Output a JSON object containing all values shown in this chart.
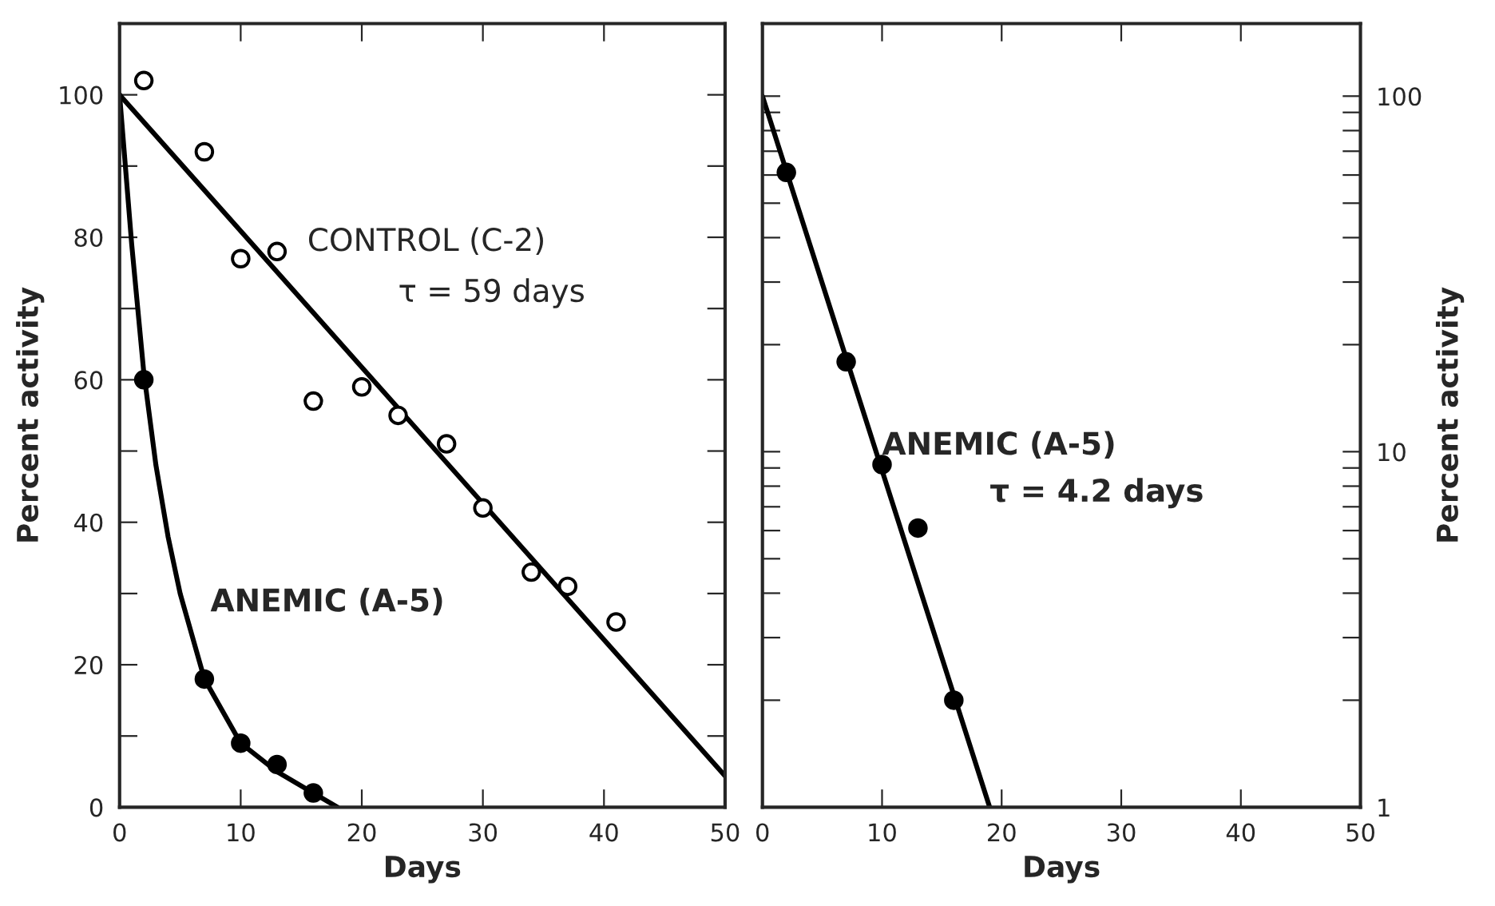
{
  "chart_data": [
    {
      "type": "scatter",
      "xlabel": "Days",
      "ylabel": "Percent activity",
      "xlim": [
        0,
        50
      ],
      "ylim": [
        0,
        110
      ],
      "xticks": [
        0,
        10,
        20,
        30,
        40,
        50
      ],
      "yticks": [
        0,
        {
          "value": 10,
          "label": null
        },
        20,
        {
          "value": 30,
          "label": null
        },
        40,
        {
          "value": 50,
          "label": null
        },
        60,
        {
          "value": 70,
          "label": null
        },
        80,
        {
          "value": 90,
          "label": null
        },
        100
      ],
      "grid": false,
      "legend": false,
      "series": [
        {
          "name": "CONTROL (C-2)",
          "marker": "circle",
          "color": "#ffffff",
          "x": [
            2,
            7,
            10,
            13,
            16,
            20,
            23,
            27,
            30,
            34,
            37,
            41
          ],
          "values": [
            102,
            92,
            77,
            78,
            57,
            59,
            55,
            51,
            42,
            33,
            31,
            26
          ]
        },
        {
          "type": "line",
          "color": "#000000",
          "x": [
            0,
            50
          ],
          "values": [
            100,
            4.4
          ]
        },
        {
          "name": "ANEMIC (A-5)",
          "marker": "circle",
          "color": "#000000",
          "x": [
            2,
            7,
            10,
            13,
            16
          ],
          "values": [
            60,
            18,
            9,
            6,
            2
          ]
        },
        {
          "type": "line",
          "color": "#000000",
          "x": [
            0,
            1,
            2,
            3,
            4,
            5,
            7,
            10,
            13,
            16,
            18
          ],
          "values": [
            100,
            79,
            61,
            48,
            38,
            30,
            18,
            9,
            5,
            2,
            0
          ]
        }
      ],
      "annotations": [
        "τ = 59 days"
      ]
    },
    {
      "type": "scatter",
      "xlabel": "Days",
      "ylabel": "Percent activity",
      "xlim": [
        0,
        50
      ],
      "ylim": [
        1,
        160
      ],
      "log": "y",
      "xticks": [
        0,
        10,
        20,
        30,
        40,
        50
      ],
      "yticks": [
        1,
        {
          "value": 2,
          "label": null
        },
        {
          "value": 3,
          "label": null
        },
        {
          "value": 4,
          "label": null
        },
        {
          "value": 5,
          "label": null
        },
        {
          "value": 6,
          "label": null
        },
        {
          "value": 7,
          "label": null
        },
        {
          "value": 8,
          "label": null
        },
        {
          "value": 9,
          "label": null
        },
        10,
        {
          "value": 20,
          "label": null
        },
        {
          "value": 30,
          "label": null
        },
        {
          "value": 40,
          "label": null
        },
        {
          "value": 50,
          "label": null
        },
        {
          "value": 60,
          "label": null
        },
        {
          "value": 70,
          "label": null
        },
        {
          "value": 80,
          "label": null
        },
        {
          "value": 90,
          "label": null
        },
        100
      ],
      "grid": false,
      "legend": false,
      "series": [
        {
          "name": "ANEMIC (A-5)",
          "marker": "circle",
          "color": "#000000",
          "x": [
            2,
            7,
            10,
            13,
            16
          ],
          "values": [
            61,
            17.9,
            9.2,
            6.1,
            2
          ]
        },
        {
          "type": "line",
          "color": "#000000",
          "x": [
            0,
            19
          ],
          "values": [
            100,
            1
          ]
        }
      ],
      "annotations": [
        "τ = 4.2 days"
      ]
    }
  ]
}
